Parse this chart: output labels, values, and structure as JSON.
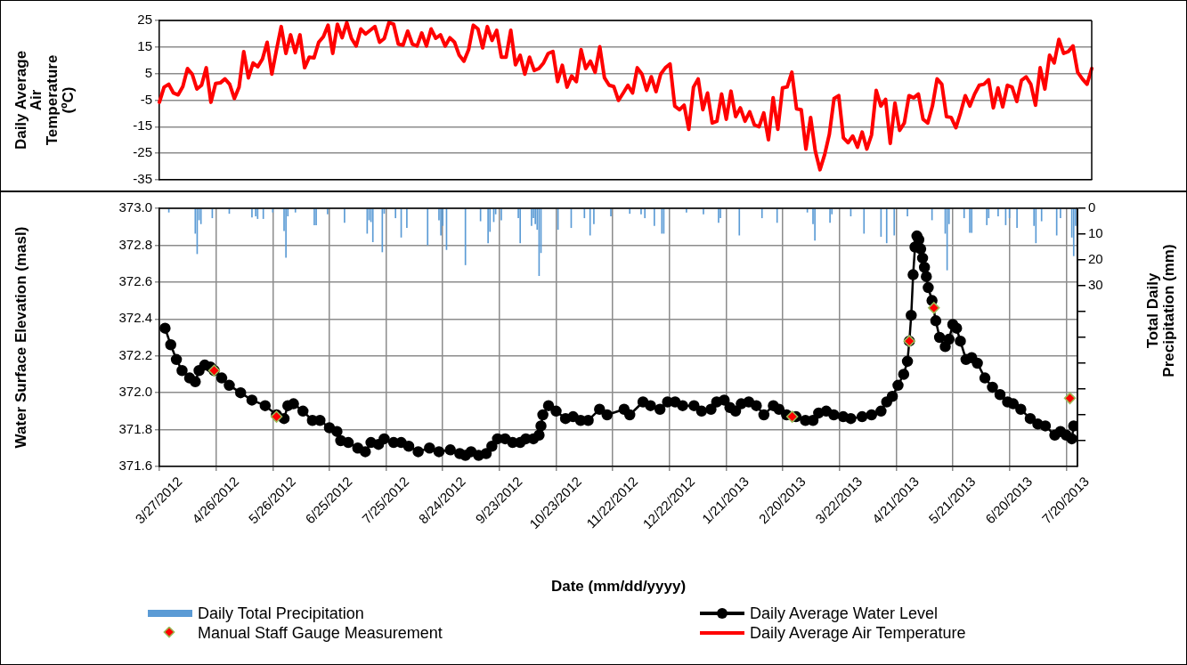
{
  "chart_data": [
    {
      "type": "line",
      "ylabel": "Daily Average Air Temperature (ºC)",
      "categories": [
        null,
        null,
        null,
        null,
        null,
        null,
        null,
        null,
        null,
        null,
        null,
        null,
        null,
        null,
        null,
        null,
        null,
        null,
        null,
        null,
        null,
        null,
        null,
        null,
        null,
        null,
        null,
        null,
        null,
        null,
        null,
        null,
        null,
        null,
        null,
        null,
        null,
        null,
        null,
        null,
        null,
        null,
        null,
        null,
        null,
        null,
        null,
        null,
        null,
        null,
        null,
        null,
        null,
        null,
        null,
        null,
        null,
        null,
        null,
        null,
        null,
        null,
        null,
        null,
        null,
        null,
        null,
        null,
        null,
        null,
        null,
        null,
        null,
        null,
        null,
        null,
        null,
        null,
        null,
        null,
        null,
        null,
        null,
        null,
        null,
        null,
        null,
        null,
        null,
        null,
        null,
        null,
        null,
        null,
        null,
        null,
        null,
        null,
        null,
        null,
        null,
        null,
        null,
        null,
        null,
        null,
        null,
        null,
        null,
        null,
        null,
        null,
        null,
        null,
        null,
        null,
        null,
        null,
        null,
        null,
        null,
        null,
        null,
        null,
        null,
        null,
        null,
        null,
        null,
        null,
        null,
        null,
        null,
        null,
        null,
        null,
        null,
        null,
        null,
        null,
        null,
        null,
        null,
        null,
        null,
        null,
        null,
        null,
        null,
        null,
        null,
        null,
        null,
        null,
        null,
        null,
        null,
        null,
        null,
        null,
        null,
        null,
        null,
        null,
        null,
        null,
        null,
        null,
        null,
        null,
        null,
        null,
        null,
        null,
        null,
        null,
        null,
        null,
        null,
        null,
        null,
        null,
        null,
        null,
        null,
        null,
        null,
        null,
        null,
        null,
        null,
        null,
        null,
        null,
        null,
        null,
        null,
        null,
        null,
        null
      ],
      "ylim": [
        -35,
        25
      ],
      "yticks": [
        25,
        15,
        5,
        -5,
        -15,
        -25,
        -35
      ],
      "grid": "y",
      "legend": "bottom",
      "tick_labels": "y",
      "series": [
        {
          "name": "Daily Average Air Temperature",
          "color": "#ff0000",
          "marker": "none",
          "values": [
            -5.8,
            -0.1,
            1,
            -2.3,
            -3,
            0.1,
            6.9,
            4.8,
            -0.8,
            0.6,
            7.2,
            -5.8,
            1.3,
            1.5,
            3,
            1,
            -4.4,
            -0.1,
            13.3,
            3.4,
            9,
            7.6,
            10.5,
            16.8,
            4.8,
            14,
            22.7,
            12.6,
            19.6,
            12.9,
            19.6,
            7.2,
            11.2,
            10.9,
            16.8,
            18.9,
            23.2,
            12.6,
            23.6,
            18.5,
            24.2,
            18.2,
            15.4,
            21.8,
            19.9,
            21.3,
            22.7,
            16.8,
            18.2,
            24.2,
            23.6,
            16.1,
            15.7,
            21,
            16.1,
            15.4,
            20.3,
            15.4,
            21.8,
            18.3,
            19.6,
            15.4,
            18.5,
            16.8,
            11.9,
            9.7,
            14,
            23.2,
            21.8,
            14.7,
            22.7,
            17.5,
            21.3,
            11.2,
            11.2,
            21.3,
            8.3,
            11.9,
            4.8,
            11.2,
            6.2,
            6.9,
            9,
            12.6,
            13.3,
            2,
            8.1,
            -0.1,
            4.1,
            2,
            14,
            6.9,
            9.7,
            5.5,
            15.1,
            3.4,
            0.6,
            0.1,
            -5.1,
            -2.3,
            0.6,
            -2.3,
            7.2,
            4.8,
            -1.3,
            3.8,
            -1.8,
            4.8,
            7.2,
            8.6,
            -7.2,
            -8.6,
            -6.9,
            -16,
            -0.1,
            3,
            -8.6,
            -2.3,
            -13.6,
            -12.9,
            -2.7,
            -12.2,
            -1.6,
            -11.2,
            -7.9,
            -12.9,
            -9.4,
            -14.3,
            -15,
            -9.8,
            -19.9,
            -4.1,
            -16,
            -0.4,
            0,
            5.5,
            -8.3,
            -8.6,
            -23.4,
            -11.5,
            -24.2,
            -31.2,
            -25.5,
            -17.8,
            -4.4,
            -3.3,
            -19.2,
            -21,
            -18.5,
            -22.7,
            -17,
            -23.4,
            -18.1,
            -1.3,
            -7.2,
            -4.7,
            -21.3,
            -6.1,
            -16.4,
            -13.6,
            -3.3,
            -4.1,
            -2.7,
            -12.2,
            -13.6,
            -7.2,
            3,
            1,
            -11.2,
            -11.5,
            -15.4,
            -9.8,
            -3.3,
            -7.2,
            -2.7,
            0.6,
            1,
            2.7,
            -7.9,
            -0.4,
            -7.5,
            0.6,
            -0.1,
            -5.5,
            2.4,
            3.8,
            1,
            -6.9,
            7.2,
            -0.8,
            11.9,
            9,
            17.9,
            12.6,
            13.3,
            15.4,
            5.5,
            3,
            1,
            6.9
          ]
        }
      ]
    },
    {
      "type": "line",
      "xlabel": "Date (mm/dd/yyyy)",
      "ylabel": "Water Surface Elevation (masl)",
      "y2label": "Total Daily Precipitation (mm)",
      "xlim": [
        "2012-03-27",
        "2013-07-26"
      ],
      "xticks": [
        {
          "value": "2012-03-27",
          "label": "3/27/2012"
        },
        {
          "value": "2012-04-26",
          "label": "4/26/2012"
        },
        {
          "value": "2012-05-26",
          "label": "5/26/2012"
        },
        {
          "value": "2012-06-25",
          "label": "6/25/2012"
        },
        {
          "value": "2012-07-25",
          "label": "7/25/2012"
        },
        {
          "value": "2012-08-24",
          "label": "8/24/2012"
        },
        {
          "value": "2012-09-23",
          "label": "9/23/2012"
        },
        {
          "value": "2012-10-23",
          "label": "10/23/2012"
        },
        {
          "value": "2012-11-22",
          "label": "11/22/2012"
        },
        {
          "value": "2012-12-22",
          "label": "12/22/2012"
        },
        {
          "value": "2013-01-21",
          "label": "1/21/2013"
        },
        {
          "value": "2013-02-20",
          "label": "2/20/2013"
        },
        {
          "value": "2013-03-22",
          "label": "3/22/2013"
        },
        {
          "value": "2013-04-21",
          "label": "4/21/2013"
        },
        {
          "value": "2013-05-21",
          "label": "5/21/2013"
        },
        {
          "value": "2013-06-20",
          "label": "6/20/2013"
        },
        {
          "value": "2013-07-20",
          "label": "7/20/2013"
        }
      ],
      "ylim": [
        371.6,
        373.0
      ],
      "yticks": [
        {
          "value": 371.6,
          "label": "371.6"
        },
        {
          "value": 371.8,
          "label": "371.8"
        },
        {
          "value": 372.0,
          "label": "372.0"
        },
        {
          "value": 372.2,
          "label": "372.2"
        },
        {
          "value": 372.4,
          "label": "372.4"
        },
        {
          "value": 372.6,
          "label": "372.6"
        },
        {
          "value": 372.8,
          "label": "372.8"
        },
        {
          "value": 373.0,
          "label": "373.0"
        }
      ],
      "y2lim": [
        100,
        0
      ],
      "y2ticks": [
        0,
        10,
        20,
        30,
        {
          "value": 40,
          "label": null
        },
        {
          "value": 50,
          "label": null
        },
        {
          "value": 60,
          "label": null
        },
        {
          "value": 70,
          "label": null
        },
        {
          "value": 80,
          "label": null
        },
        {
          "value": 90,
          "label": null
        }
      ],
      "grid": true,
      "legend": "bottom",
      "series": [
        {
          "name": "Daily Total Precipitation",
          "type": "bar",
          "axis": "y2",
          "color": "#5b9bd5",
          "x": [
            "2012-04-01",
            "2012-04-15",
            "2012-04-16",
            "2012-04-17",
            "2012-04-18",
            "2012-04-24",
            "2012-05-03",
            "2012-05-15",
            "2012-05-17",
            "2012-05-18",
            "2012-05-21",
            "2012-05-26",
            "2012-06-01",
            "2012-06-02",
            "2012-06-03",
            "2012-06-07",
            "2012-06-17",
            "2012-06-18",
            "2012-06-24",
            "2012-07-03",
            "2012-07-15",
            "2012-07-16",
            "2012-07-17",
            "2012-07-18",
            "2012-07-23",
            "2012-07-24",
            "2012-07-30",
            "2012-08-02",
            "2012-08-05",
            "2012-08-16",
            "2012-08-22",
            "2012-08-23",
            "2012-08-24",
            "2012-08-26",
            "2012-09-05",
            "2012-09-13",
            "2012-09-17",
            "2012-09-18",
            "2012-09-20",
            "2012-09-21",
            "2012-09-24",
            "2012-10-03",
            "2012-10-04",
            "2012-10-10",
            "2012-10-11",
            "2012-10-12",
            "2012-10-13",
            "2012-10-14",
            "2012-10-15",
            "2012-10-24",
            "2012-10-31",
            "2012-11-07",
            "2012-11-10",
            "2012-11-12",
            "2012-11-21",
            "2012-12-01",
            "2012-12-07",
            "2012-12-09",
            "2012-12-14",
            "2012-12-18",
            "2012-12-19",
            "2012-12-31",
            "2013-01-09",
            "2013-01-17",
            "2013-01-18",
            "2013-01-28",
            "2013-02-09",
            "2013-02-17",
            "2013-03-05",
            "2013-03-08",
            "2013-03-09",
            "2013-03-17",
            "2013-03-18",
            "2013-03-28",
            "2013-04-04",
            "2013-04-13",
            "2013-04-16",
            "2013-04-20",
            "2013-04-27",
            "2013-05-10",
            "2013-05-17",
            "2013-05-18",
            "2013-05-19",
            "2013-05-27",
            "2013-05-30",
            "2013-05-31",
            "2013-06-08",
            "2013-06-09",
            "2013-06-14",
            "2013-06-18",
            "2013-06-20",
            "2013-06-24",
            "2013-07-03",
            "2013-07-04",
            "2013-07-07",
            "2013-07-15",
            "2013-07-17",
            "2013-07-23",
            "2013-07-24",
            "2013-07-25"
          ],
          "values": [
            1.5,
            9.7,
            17.6,
            4.5,
            6,
            3.7,
            2,
            3.4,
            3,
            4,
            4,
            1.5,
            8.7,
            19,
            3,
            1.5,
            6.4,
            6.4,
            2.2,
            5.5,
            9.7,
            4.5,
            5.2,
            13,
            16.9,
            2,
            3.7,
            11.2,
            7.5,
            14.2,
            4.5,
            10.4,
            6.7,
            16,
            21.9,
            4.9,
            13.4,
            9,
            5.2,
            2.2,
            4.5,
            3.7,
            13.4,
            6.7,
            3.7,
            6,
            8.2,
            26.1,
            17.2,
            8.2,
            7.5,
            3.7,
            10.4,
            6,
            3,
            2,
            2.2,
            3.7,
            6.7,
            9.7,
            9.7,
            1.5,
            2.2,
            5.5,
            3.7,
            10.4,
            3.7,
            5.5,
            1.5,
            6,
            12.4,
            5.5,
            2.2,
            3,
            9.7,
            10.9,
            13.4,
            10.4,
            3,
            4.5,
            9.7,
            23.9,
            6,
            3.7,
            9.4,
            9.4,
            6.4,
            3.7,
            3,
            6.4,
            3.7,
            7.5,
            6.7,
            13.4,
            4.9,
            10.4,
            3.7,
            11.2,
            18.4,
            6.7
          ]
        },
        {
          "name": "Manual Staff Gauge Measurement",
          "type": "scatter",
          "marker": "diamond",
          "color": "#ff0000",
          "x": [
            "2012-04-25",
            "2012-05-28",
            "2013-02-25",
            "2013-04-28",
            "2013-05-11",
            "2013-07-22"
          ],
          "values": [
            372.12,
            371.87,
            371.87,
            372.28,
            372.46,
            371.97
          ]
        },
        {
          "name": "Daily Average Water Level",
          "color": "#000000",
          "marker": "circle",
          "x": [
            "2012-03-30",
            "2012-04-02",
            "2012-04-05",
            "2012-04-08",
            "2012-04-12",
            "2012-04-15",
            "2012-04-17",
            "2012-04-20",
            "2012-04-23",
            "2012-04-25",
            "2012-04-29",
            "2012-05-03",
            "2012-05-09",
            "2012-05-15",
            "2012-05-22",
            "2012-05-28",
            "2012-06-01",
            "2012-06-03",
            "2012-06-06",
            "2012-06-11",
            "2012-06-16",
            "2012-06-20",
            "2012-06-25",
            "2012-06-29",
            "2012-07-01",
            "2012-07-05",
            "2012-07-10",
            "2012-07-14",
            "2012-07-17",
            "2012-07-21",
            "2012-07-24",
            "2012-07-29",
            "2012-08-02",
            "2012-08-06",
            "2012-08-11",
            "2012-08-17",
            "2012-08-22",
            "2012-08-28",
            "2012-09-02",
            "2012-09-05",
            "2012-09-08",
            "2012-09-12",
            "2012-09-16",
            "2012-09-19",
            "2012-09-22",
            "2012-09-26",
            "2012-09-30",
            "2012-10-04",
            "2012-10-07",
            "2012-10-11",
            "2012-10-14",
            "2012-10-15",
            "2012-10-16",
            "2012-10-19",
            "2012-10-23",
            "2012-10-28",
            "2012-11-01",
            "2012-11-05",
            "2012-11-09",
            "2012-11-15",
            "2012-11-19",
            "2012-11-28",
            "2012-12-01",
            "2012-12-08",
            "2012-12-12",
            "2012-12-17",
            "2012-12-21",
            "2012-12-25",
            "2012-12-29",
            "2013-01-04",
            "2013-01-08",
            "2013-01-13",
            "2013-01-16",
            "2013-01-20",
            "2013-01-23",
            "2013-01-26",
            "2013-01-29",
            "2013-02-02",
            "2013-02-06",
            "2013-02-10",
            "2013-02-15",
            "2013-02-18",
            "2013-02-22",
            "2013-02-27",
            "2013-03-04",
            "2013-03-08",
            "2013-03-11",
            "2013-03-15",
            "2013-03-19",
            "2013-03-24",
            "2013-03-28",
            "2013-04-03",
            "2013-04-08",
            "2013-04-13",
            "2013-04-16",
            "2013-04-19",
            "2013-04-22",
            "2013-04-25",
            "2013-04-27",
            "2013-04-28",
            "2013-04-29",
            "2013-04-30",
            "2013-05-01",
            "2013-05-02",
            "2013-05-03",
            "2013-05-04",
            "2013-05-05",
            "2013-05-06",
            "2013-05-07",
            "2013-05-08",
            "2013-05-10",
            "2013-05-12",
            "2013-05-14",
            "2013-05-17",
            "2013-05-19",
            "2013-05-21",
            "2013-05-23",
            "2013-05-25",
            "2013-05-28",
            "2013-05-31",
            "2013-06-03",
            "2013-06-07",
            "2013-06-11",
            "2013-06-15",
            "2013-06-19",
            "2013-06-22",
            "2013-06-26",
            "2013-07-01",
            "2013-07-05",
            "2013-07-09",
            "2013-07-14",
            "2013-07-17",
            "2013-07-20",
            "2013-07-23",
            "2013-07-24"
          ],
          "values": [
            372.35,
            372.26,
            372.18,
            372.12,
            372.08,
            372.06,
            372.12,
            372.15,
            372.14,
            372.12,
            372.08,
            372.04,
            372.0,
            371.96,
            371.93,
            371.88,
            371.86,
            371.93,
            371.94,
            371.9,
            371.85,
            371.85,
            371.81,
            371.79,
            371.74,
            371.73,
            371.7,
            371.68,
            371.73,
            371.72,
            371.75,
            371.73,
            371.73,
            371.71,
            371.68,
            371.7,
            371.68,
            371.69,
            371.67,
            371.66,
            371.68,
            371.66,
            371.67,
            371.71,
            371.75,
            371.75,
            371.73,
            371.73,
            371.75,
            371.75,
            371.77,
            371.82,
            371.88,
            371.93,
            371.9,
            371.86,
            371.87,
            371.85,
            371.85,
            371.91,
            371.88,
            371.91,
            371.88,
            371.95,
            371.93,
            371.91,
            371.95,
            371.95,
            371.93,
            371.93,
            371.9,
            371.91,
            371.95,
            371.96,
            371.92,
            371.9,
            371.94,
            371.95,
            371.93,
            371.88,
            371.93,
            371.91,
            371.88,
            371.87,
            371.85,
            371.85,
            371.89,
            371.9,
            371.88,
            371.87,
            371.86,
            371.87,
            371.88,
            371.9,
            371.95,
            371.98,
            372.04,
            372.1,
            372.17,
            372.28,
            372.42,
            372.64,
            372.79,
            372.85,
            372.83,
            372.78,
            372.73,
            372.68,
            372.63,
            372.57,
            372.5,
            372.39,
            372.3,
            372.25,
            372.29,
            372.37,
            372.35,
            372.28,
            372.18,
            372.19,
            372.16,
            372.08,
            372.03,
            371.99,
            371.95,
            371.94,
            371.91,
            371.86,
            371.83,
            371.82,
            371.77,
            371.79,
            371.77,
            371.75,
            371.82
          ]
        }
      ]
    }
  ]
}
